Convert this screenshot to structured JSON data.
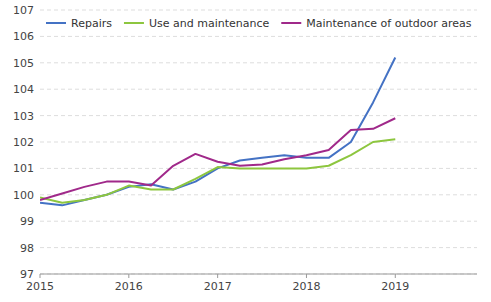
{
  "chart_data": {
    "type": "line",
    "x": [
      2015,
      2015.25,
      2015.5,
      2015.75,
      2016,
      2016.25,
      2016.5,
      2016.75,
      2017,
      2017.25,
      2017.5,
      2017.75,
      2018,
      2018.25,
      2018.5,
      2018.75,
      2019
    ],
    "series": [
      {
        "name": "Repairs",
        "color": "#4472C4",
        "values": [
          99.7,
          99.6,
          99.8,
          100.0,
          100.3,
          100.4,
          100.2,
          100.5,
          101.0,
          101.3,
          101.4,
          101.5,
          101.4,
          101.4,
          102.0,
          103.5,
          105.2
        ]
      },
      {
        "name": "Use and maintenance",
        "color": "#8DC63F",
        "values": [
          99.9,
          99.7,
          99.8,
          100.0,
          100.35,
          100.2,
          100.2,
          100.6,
          101.05,
          101.0,
          101.0,
          101.0,
          101.0,
          101.1,
          101.5,
          102.0,
          102.1
        ]
      },
      {
        "name": "Maintenance of outdoor areas",
        "color": "#A0298A",
        "values": [
          99.8,
          100.05,
          100.3,
          100.5,
          100.5,
          100.35,
          101.1,
          101.55,
          101.25,
          101.1,
          101.15,
          101.35,
          101.5,
          101.7,
          102.45,
          102.5,
          102.9
        ]
      }
    ],
    "xlim": [
      2015.0,
      2019.92
    ],
    "xticks": [
      2015,
      2016,
      2017,
      2018,
      2019
    ],
    "ylim": [
      97,
      107
    ],
    "yticks": [
      97,
      98,
      99,
      100,
      101,
      102,
      103,
      104,
      105,
      106,
      107
    ],
    "grid": true,
    "legend": "upper left"
  }
}
